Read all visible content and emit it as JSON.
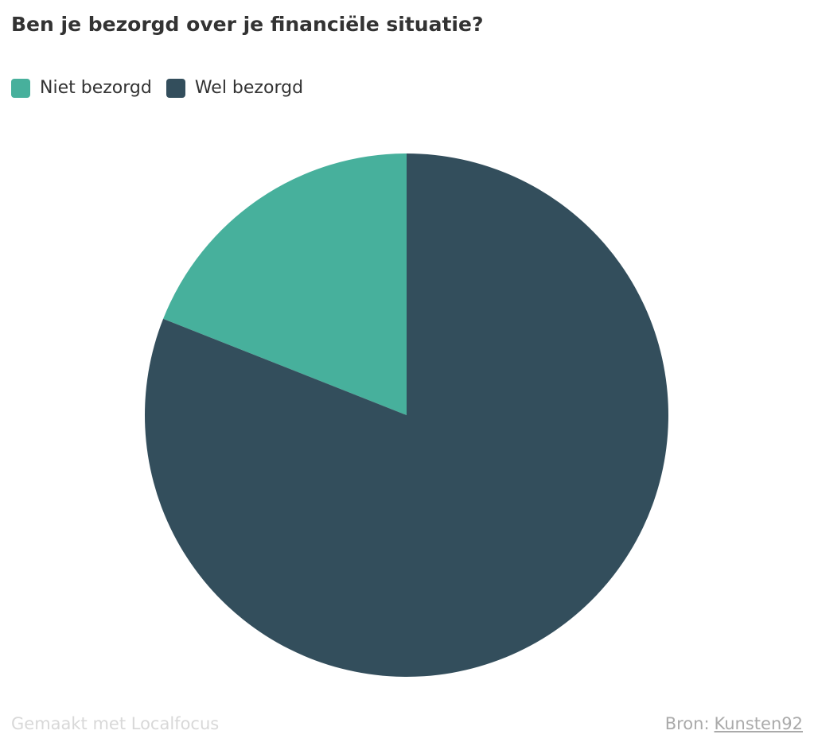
{
  "chart_data": {
    "type": "pie",
    "title": "Ben je bezorgd over je financiële situatie?",
    "legend_position": "top-left",
    "series": [
      {
        "name": "Niet bezorgd",
        "value": 19,
        "color": "#47b09c"
      },
      {
        "name": "Wel bezorgd",
        "value": 81,
        "color": "#334e5c"
      }
    ]
  },
  "footer": {
    "credit": "Gemaakt met Localfocus",
    "source_label": "Bron:",
    "source_link": "Kunsten92"
  }
}
